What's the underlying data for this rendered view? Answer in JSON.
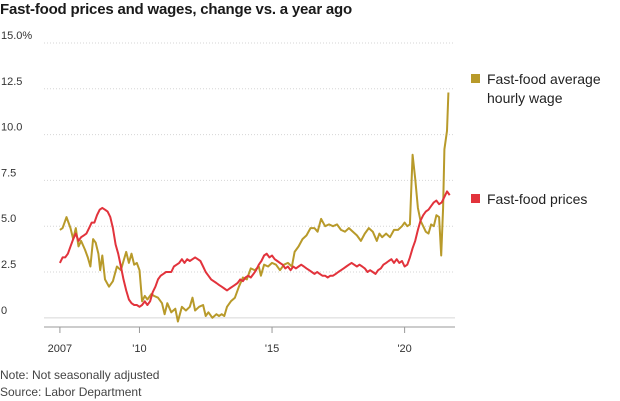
{
  "chart_data": {
    "type": "line",
    "title": "Fast-food prices and wages, change vs. a year ago",
    "xlabel": "",
    "ylabel": "",
    "ylim": [
      -0.5,
      15
    ],
    "yticks": [
      0,
      2.5,
      5,
      7.5,
      10,
      12.5,
      15
    ],
    "ytick_labels": [
      "0",
      "2.5",
      "5.0",
      "7.5",
      "10.0",
      "12.5",
      "15.0%"
    ],
    "xlim": [
      2006.4,
      2021.9
    ],
    "xticks": [
      2007,
      2010,
      2015,
      2020
    ],
    "xtick_labels": [
      "2007",
      "'10",
      "'15",
      "'20"
    ],
    "grid": true,
    "legend": "right",
    "series": [
      {
        "name": "Fast-food average hourly wage",
        "color": "#b89a2a",
        "points": [
          [
            2007.0,
            4.8
          ],
          [
            2007.1,
            4.9
          ],
          [
            2007.25,
            5.5
          ],
          [
            2007.4,
            4.9
          ],
          [
            2007.5,
            4.3
          ],
          [
            2007.6,
            4.9
          ],
          [
            2007.7,
            3.9
          ],
          [
            2007.8,
            4.2
          ],
          [
            2007.95,
            3.7
          ],
          [
            2008.05,
            3.3
          ],
          [
            2008.15,
            2.8
          ],
          [
            2008.25,
            4.3
          ],
          [
            2008.35,
            4.1
          ],
          [
            2008.45,
            3.5
          ],
          [
            2008.52,
            2.6
          ],
          [
            2008.6,
            3.4
          ],
          [
            2008.7,
            2.1
          ],
          [
            2008.85,
            1.7
          ],
          [
            2009.0,
            2.0
          ],
          [
            2009.15,
            2.8
          ],
          [
            2009.3,
            2.6
          ],
          [
            2009.4,
            3.1
          ],
          [
            2009.5,
            3.6
          ],
          [
            2009.6,
            3.0
          ],
          [
            2009.7,
            3.5
          ],
          [
            2009.8,
            2.9
          ],
          [
            2009.9,
            3.0
          ],
          [
            2010.0,
            2.6
          ],
          [
            2010.1,
            0.9
          ],
          [
            2010.2,
            1.2
          ],
          [
            2010.3,
            1.0
          ],
          [
            2010.45,
            1.3
          ],
          [
            2010.55,
            1.2
          ],
          [
            2010.7,
            1.1
          ],
          [
            2010.85,
            0.8
          ],
          [
            2010.95,
            0.2
          ],
          [
            2011.05,
            0.8
          ],
          [
            2011.2,
            0.3
          ],
          [
            2011.35,
            0.5
          ],
          [
            2011.45,
            -0.2
          ],
          [
            2011.6,
            0.6
          ],
          [
            2011.75,
            0.4
          ],
          [
            2011.9,
            0.6
          ],
          [
            2012.0,
            1.1
          ],
          [
            2012.1,
            0.4
          ],
          [
            2012.25,
            0.6
          ],
          [
            2012.4,
            0.7
          ],
          [
            2012.5,
            0.1
          ],
          [
            2012.6,
            0.3
          ],
          [
            2012.75,
            0.0
          ],
          [
            2012.9,
            0.2
          ],
          [
            2013.0,
            0.1
          ],
          [
            2013.1,
            0.2
          ],
          [
            2013.2,
            0.1
          ],
          [
            2013.3,
            0.6
          ],
          [
            2013.45,
            0.9
          ],
          [
            2013.6,
            1.1
          ],
          [
            2013.75,
            1.7
          ],
          [
            2013.9,
            2.2
          ],
          [
            2014.05,
            2.1
          ],
          [
            2014.2,
            2.7
          ],
          [
            2014.35,
            2.6
          ],
          [
            2014.5,
            2.8
          ],
          [
            2014.58,
            2.3
          ],
          [
            2014.7,
            2.9
          ],
          [
            2014.85,
            2.8
          ],
          [
            2015.0,
            3.0
          ],
          [
            2015.15,
            2.9
          ],
          [
            2015.3,
            2.6
          ],
          [
            2015.45,
            2.9
          ],
          [
            2015.6,
            3.0
          ],
          [
            2015.75,
            2.8
          ],
          [
            2015.85,
            3.6
          ],
          [
            2016.0,
            3.9
          ],
          [
            2016.15,
            4.3
          ],
          [
            2016.3,
            4.5
          ],
          [
            2016.45,
            4.9
          ],
          [
            2016.6,
            4.9
          ],
          [
            2016.72,
            4.7
          ],
          [
            2016.85,
            5.4
          ],
          [
            2017.0,
            5.0
          ],
          [
            2017.15,
            5.1
          ],
          [
            2017.3,
            5.0
          ],
          [
            2017.45,
            5.1
          ],
          [
            2017.6,
            4.8
          ],
          [
            2017.75,
            4.7
          ],
          [
            2017.9,
            4.9
          ],
          [
            2018.05,
            4.7
          ],
          [
            2018.2,
            4.5
          ],
          [
            2018.35,
            4.2
          ],
          [
            2018.5,
            4.6
          ],
          [
            2018.65,
            4.9
          ],
          [
            2018.8,
            4.7
          ],
          [
            2018.95,
            4.2
          ],
          [
            2019.05,
            4.6
          ],
          [
            2019.15,
            4.4
          ],
          [
            2019.3,
            4.6
          ],
          [
            2019.45,
            4.4
          ],
          [
            2019.6,
            4.8
          ],
          [
            2019.75,
            4.8
          ],
          [
            2019.9,
            5.0
          ],
          [
            2020.0,
            5.2
          ],
          [
            2020.1,
            5.0
          ],
          [
            2020.2,
            5.1
          ],
          [
            2020.3,
            8.9
          ],
          [
            2020.4,
            7.6
          ],
          [
            2020.5,
            6.0
          ],
          [
            2020.6,
            5.3
          ],
          [
            2020.7,
            5.0
          ],
          [
            2020.8,
            4.7
          ],
          [
            2020.9,
            4.6
          ],
          [
            2021.0,
            5.1
          ],
          [
            2021.1,
            5.0
          ],
          [
            2021.2,
            5.6
          ],
          [
            2021.3,
            5.5
          ],
          [
            2021.38,
            3.4
          ],
          [
            2021.45,
            6.0
          ],
          [
            2021.5,
            9.2
          ],
          [
            2021.6,
            10.2
          ],
          [
            2021.65,
            12.3
          ]
        ]
      },
      {
        "name": "Fast-food prices",
        "color": "#e2333c",
        "points": [
          [
            2007.0,
            3.0
          ],
          [
            2007.1,
            3.3
          ],
          [
            2007.2,
            3.3
          ],
          [
            2007.3,
            3.5
          ],
          [
            2007.4,
            3.9
          ],
          [
            2007.5,
            4.3
          ],
          [
            2007.6,
            4.6
          ],
          [
            2007.7,
            4.2
          ],
          [
            2007.8,
            4.4
          ],
          [
            2007.9,
            4.5
          ],
          [
            2008.0,
            4.6
          ],
          [
            2008.1,
            4.9
          ],
          [
            2008.2,
            5.2
          ],
          [
            2008.3,
            5.2
          ],
          [
            2008.4,
            5.6
          ],
          [
            2008.5,
            5.9
          ],
          [
            2008.6,
            6.0
          ],
          [
            2008.7,
            5.9
          ],
          [
            2008.8,
            5.8
          ],
          [
            2008.9,
            5.5
          ],
          [
            2009.0,
            4.9
          ],
          [
            2009.1,
            4.0
          ],
          [
            2009.2,
            3.5
          ],
          [
            2009.3,
            2.8
          ],
          [
            2009.4,
            2.1
          ],
          [
            2009.5,
            1.5
          ],
          [
            2009.6,
            1.0
          ],
          [
            2009.7,
            0.8
          ],
          [
            2009.8,
            0.7
          ],
          [
            2009.9,
            0.7
          ],
          [
            2010.0,
            0.6
          ],
          [
            2010.1,
            0.7
          ],
          [
            2010.2,
            0.9
          ],
          [
            2010.3,
            0.7
          ],
          [
            2010.4,
            0.9
          ],
          [
            2010.5,
            1.4
          ],
          [
            2010.6,
            1.7
          ],
          [
            2010.7,
            2.1
          ],
          [
            2010.8,
            2.3
          ],
          [
            2010.9,
            2.4
          ],
          [
            2011.0,
            2.5
          ],
          [
            2011.1,
            2.5
          ],
          [
            2011.2,
            2.5
          ],
          [
            2011.3,
            2.8
          ],
          [
            2011.4,
            2.9
          ],
          [
            2011.5,
            3.0
          ],
          [
            2011.6,
            3.2
          ],
          [
            2011.7,
            3.0
          ],
          [
            2011.8,
            3.2
          ],
          [
            2011.9,
            3.1
          ],
          [
            2012.0,
            3.2
          ],
          [
            2012.1,
            3.3
          ],
          [
            2012.2,
            3.2
          ],
          [
            2012.3,
            3.1
          ],
          [
            2012.4,
            2.8
          ],
          [
            2012.5,
            2.5
          ],
          [
            2012.6,
            2.3
          ],
          [
            2012.7,
            2.1
          ],
          [
            2012.8,
            2.0
          ],
          [
            2012.9,
            1.9
          ],
          [
            2013.0,
            1.8
          ],
          [
            2013.1,
            1.7
          ],
          [
            2013.2,
            1.6
          ],
          [
            2013.3,
            1.5
          ],
          [
            2013.4,
            1.6
          ],
          [
            2013.5,
            1.7
          ],
          [
            2013.6,
            1.8
          ],
          [
            2013.7,
            1.9
          ],
          [
            2013.8,
            2.1
          ],
          [
            2013.9,
            2.0
          ],
          [
            2014.0,
            2.2
          ],
          [
            2014.1,
            2.3
          ],
          [
            2014.2,
            2.2
          ],
          [
            2014.3,
            2.4
          ],
          [
            2014.4,
            2.6
          ],
          [
            2014.5,
            2.9
          ],
          [
            2014.6,
            3.1
          ],
          [
            2014.7,
            3.4
          ],
          [
            2014.8,
            3.5
          ],
          [
            2014.9,
            3.3
          ],
          [
            2015.0,
            3.4
          ],
          [
            2015.1,
            3.2
          ],
          [
            2015.2,
            3.1
          ],
          [
            2015.3,
            3.0
          ],
          [
            2015.4,
            2.9
          ],
          [
            2015.5,
            2.7
          ],
          [
            2015.6,
            2.8
          ],
          [
            2015.7,
            2.6
          ],
          [
            2015.8,
            2.8
          ],
          [
            2015.9,
            2.7
          ],
          [
            2016.0,
            2.8
          ],
          [
            2016.1,
            2.9
          ],
          [
            2016.2,
            2.8
          ],
          [
            2016.3,
            2.7
          ],
          [
            2016.4,
            2.6
          ],
          [
            2016.5,
            2.5
          ],
          [
            2016.6,
            2.4
          ],
          [
            2016.7,
            2.5
          ],
          [
            2016.8,
            2.4
          ],
          [
            2016.9,
            2.3
          ],
          [
            2017.0,
            2.3
          ],
          [
            2017.1,
            2.2
          ],
          [
            2017.2,
            2.3
          ],
          [
            2017.3,
            2.3
          ],
          [
            2017.4,
            2.4
          ],
          [
            2017.5,
            2.5
          ],
          [
            2017.6,
            2.6
          ],
          [
            2017.7,
            2.7
          ],
          [
            2017.8,
            2.8
          ],
          [
            2017.9,
            2.9
          ],
          [
            2018.0,
            3.0
          ],
          [
            2018.1,
            2.9
          ],
          [
            2018.2,
            2.8
          ],
          [
            2018.3,
            2.9
          ],
          [
            2018.4,
            2.8
          ],
          [
            2018.5,
            2.7
          ],
          [
            2018.6,
            2.5
          ],
          [
            2018.7,
            2.6
          ],
          [
            2018.8,
            2.5
          ],
          [
            2018.9,
            2.4
          ],
          [
            2019.0,
            2.6
          ],
          [
            2019.1,
            2.7
          ],
          [
            2019.2,
            2.9
          ],
          [
            2019.3,
            3.0
          ],
          [
            2019.4,
            3.1
          ],
          [
            2019.5,
            3.2
          ],
          [
            2019.6,
            3.0
          ],
          [
            2019.7,
            3.2
          ],
          [
            2019.8,
            3.0
          ],
          [
            2019.9,
            3.1
          ],
          [
            2020.0,
            2.8
          ],
          [
            2020.1,
            2.9
          ],
          [
            2020.2,
            3.3
          ],
          [
            2020.3,
            3.8
          ],
          [
            2020.4,
            4.2
          ],
          [
            2020.5,
            4.8
          ],
          [
            2020.6,
            5.3
          ],
          [
            2020.7,
            5.6
          ],
          [
            2020.8,
            5.8
          ],
          [
            2020.9,
            5.9
          ],
          [
            2021.0,
            6.1
          ],
          [
            2021.1,
            6.3
          ],
          [
            2021.2,
            6.4
          ],
          [
            2021.3,
            6.2
          ],
          [
            2021.4,
            6.3
          ],
          [
            2021.5,
            6.6
          ],
          [
            2021.6,
            6.9
          ],
          [
            2021.7,
            6.7
          ]
        ]
      }
    ],
    "legend_entries": [
      {
        "lines": [
          "Fast-food average",
          "hourly wage"
        ],
        "color": "#b89a2a"
      },
      {
        "lines": [
          "Fast-food prices"
        ],
        "color": "#e2333c"
      }
    ]
  },
  "note": "Note: Not seasonally adjusted",
  "source": "Source: Labor Department"
}
